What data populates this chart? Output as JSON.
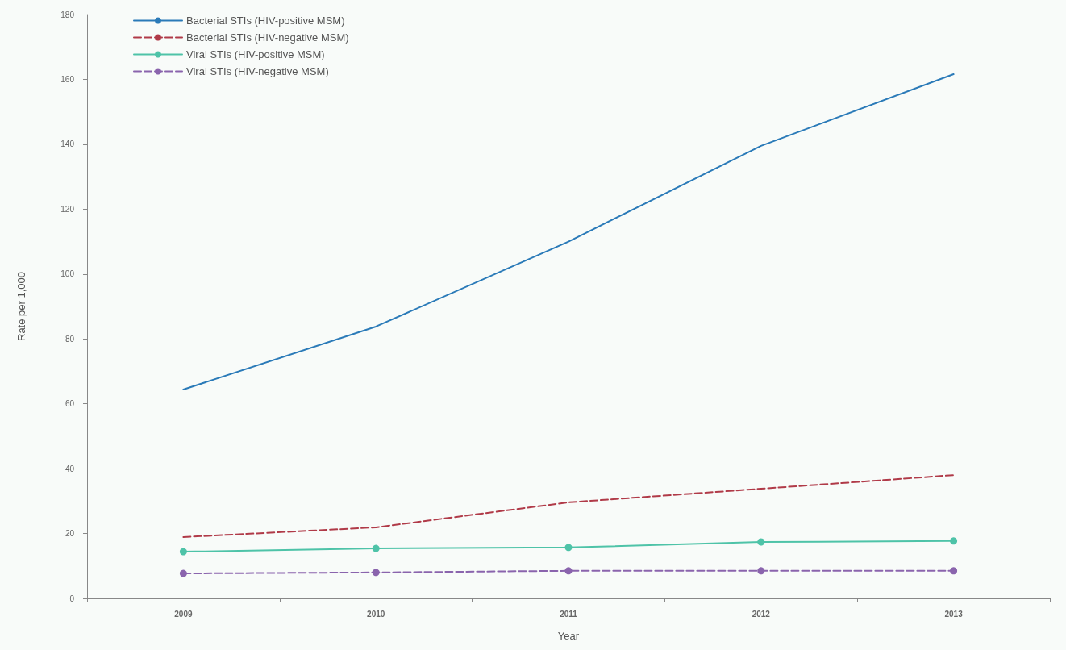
{
  "chart_data": {
    "type": "line",
    "xlabel": "Year",
    "ylabel": "Rate per 1,000",
    "categories": [
      "2009",
      "2010",
      "2011",
      "2012",
      "2013"
    ],
    "ylim": [
      0,
      180
    ],
    "yticks": [
      0,
      20,
      40,
      60,
      80,
      100,
      120,
      140,
      160,
      180
    ],
    "grid": false,
    "legend": "top left",
    "series": [
      {
        "name": "Bacterial STIs (HIV-positive MSM)",
        "color": "#2a7ab8",
        "values": [
          64.4,
          83.8,
          110,
          139.5,
          161.6
        ],
        "marker": "none",
        "line_style": "solid"
      },
      {
        "name": "Bacterial STIs (HIV-negative MSM)",
        "color": "#b03a48",
        "values": [
          18.9,
          21.9,
          29.6,
          33.8,
          38
        ],
        "marker": "none",
        "line_style": "dashed"
      },
      {
        "name": "Viral STIs (HIV-positive MSM)",
        "color": "#4ec3a8",
        "values": [
          14.4,
          15.4,
          15.7,
          17.4,
          17.7
        ],
        "marker": "circle",
        "line_style": "solid"
      },
      {
        "name": "Viral STIs (HIV-negative MSM)",
        "color": "#8a64ad",
        "values": [
          7.7,
          8,
          8.5,
          8.5,
          8.5
        ],
        "marker": "circle",
        "line_style": "dashed"
      }
    ]
  }
}
